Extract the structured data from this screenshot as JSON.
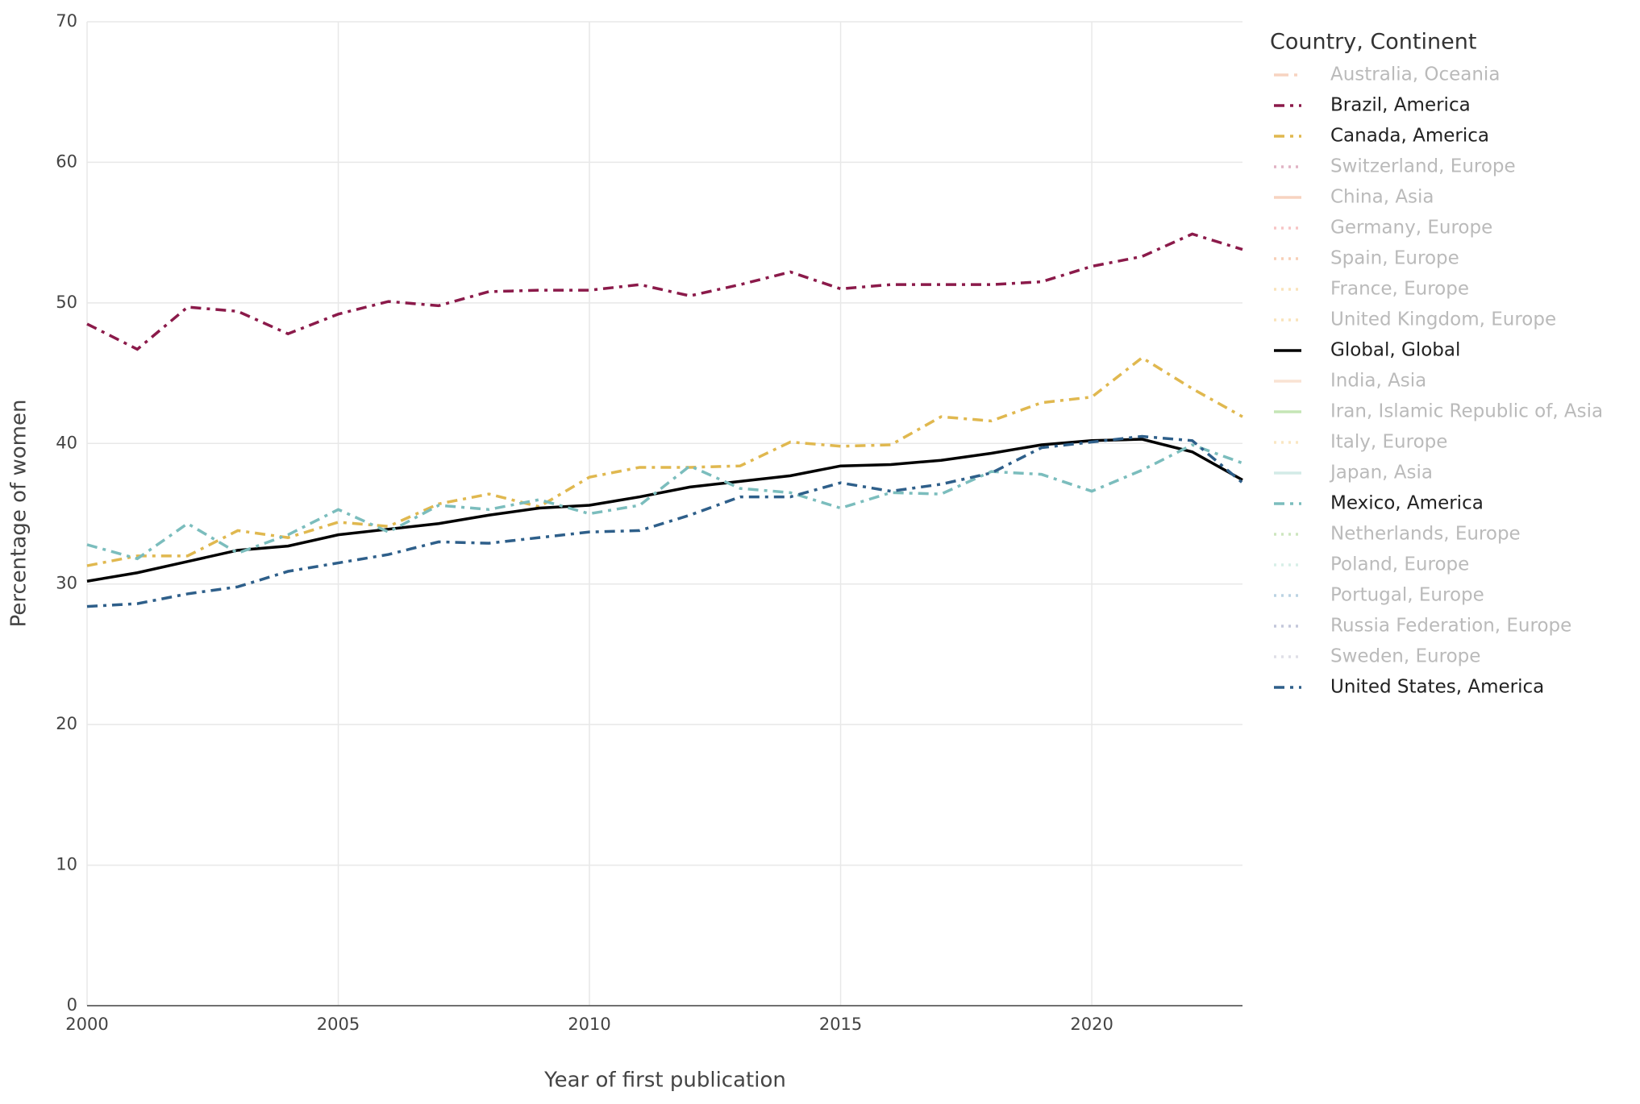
{
  "chart_data": {
    "type": "line",
    "x_label": "Year of first publication",
    "y_label": "Percentage of women",
    "legend_title": "Country, Continent",
    "legend_position": "right",
    "grid": true,
    "xlim": [
      2000,
      2023
    ],
    "ylim": [
      0,
      70
    ],
    "xticks": [
      2000,
      2005,
      2010,
      2015,
      2020
    ],
    "yticks": [
      0,
      10,
      20,
      30,
      40,
      50,
      60,
      70
    ],
    "x": [
      2000,
      2001,
      2002,
      2003,
      2004,
      2005,
      2006,
      2007,
      2008,
      2009,
      2010,
      2011,
      2012,
      2013,
      2014,
      2015,
      2016,
      2017,
      2018,
      2019,
      2020,
      2021,
      2022,
      2023
    ],
    "series": [
      {
        "name": "Australia, Oceania",
        "color": "#f0a882",
        "dash": "longdashdot",
        "visible": "legendonly"
      },
      {
        "name": "Brazil, America",
        "color": "#8b1a4a",
        "dash": "dashdot",
        "values": [
          48.5,
          46.7,
          49.7,
          49.4,
          47.8,
          49.2,
          50.1,
          49.8,
          50.8,
          50.9,
          50.9,
          51.3,
          50.5,
          51.3,
          52.2,
          51.0,
          51.3,
          51.3,
          51.3,
          51.5,
          52.6,
          53.3,
          54.9,
          53.8
        ]
      },
      {
        "name": "Canada, America",
        "color": "#e0b84f",
        "dash": "dashdot",
        "values": [
          31.3,
          32.0,
          32.0,
          33.8,
          33.3,
          34.4,
          34.1,
          35.7,
          36.4,
          35.5,
          37.6,
          38.3,
          38.3,
          38.4,
          40.1,
          39.8,
          39.9,
          41.9,
          41.6,
          42.9,
          43.3,
          46.1,
          43.9,
          41.9
        ]
      },
      {
        "name": "Switzerland, Europe",
        "color": "#c46a8a",
        "dash": "dot",
        "visible": "legendonly"
      },
      {
        "name": "China, Asia",
        "color": "#f0a882",
        "dash": "solid",
        "visible": "legendonly"
      },
      {
        "name": "Germany, Europe",
        "color": "#f08a8a",
        "dash": "dot",
        "visible": "legendonly"
      },
      {
        "name": "Spain, Europe",
        "color": "#f0a070",
        "dash": "dot",
        "visible": "legendonly"
      },
      {
        "name": "France, Europe",
        "color": "#f5c878",
        "dash": "dot",
        "visible": "legendonly"
      },
      {
        "name": "United Kingdom, Europe",
        "color": "#f5c878",
        "dash": "dot",
        "visible": "legendonly"
      },
      {
        "name": "Global, Global",
        "color": "#000000",
        "dash": "solid",
        "values": [
          30.2,
          30.8,
          31.6,
          32.4,
          32.7,
          33.5,
          33.9,
          34.3,
          34.9,
          35.4,
          35.6,
          36.2,
          36.9,
          37.3,
          37.7,
          38.4,
          38.5,
          38.8,
          39.3,
          39.9,
          40.2,
          40.3,
          39.4,
          37.4
        ]
      },
      {
        "name": "India, Asia",
        "color": "#f5c8a8",
        "dash": "solid",
        "visible": "legendonly"
      },
      {
        "name": "Iran, Islamic Republic of, Asia",
        "color": "#8ccf70",
        "dash": "solid",
        "visible": "legendonly"
      },
      {
        "name": "Italy, Europe",
        "color": "#f5d088",
        "dash": "dot",
        "visible": "legendonly"
      },
      {
        "name": "Japan, Asia",
        "color": "#a8d8d0",
        "dash": "solid",
        "visible": "legendonly"
      },
      {
        "name": "Mexico, America",
        "color": "#7bbdbd",
        "dash": "dashdot",
        "values": [
          32.8,
          31.8,
          34.3,
          32.2,
          33.5,
          35.3,
          33.7,
          35.6,
          35.3,
          36.0,
          35.0,
          35.6,
          38.4,
          36.8,
          36.5,
          35.4,
          36.5,
          36.4,
          38.0,
          37.8,
          36.6,
          38.1,
          39.9,
          38.6
        ]
      },
      {
        "name": "Netherlands, Europe",
        "color": "#9ccf80",
        "dash": "dot",
        "visible": "legendonly"
      },
      {
        "name": "Poland, Europe",
        "color": "#b0e0d0",
        "dash": "dot",
        "visible": "legendonly"
      },
      {
        "name": "Portugal, Europe",
        "color": "#7aa8c8",
        "dash": "dot",
        "visible": "legendonly"
      },
      {
        "name": "Russia Federation, Europe",
        "color": "#8890b8",
        "dash": "dot",
        "visible": "legendonly"
      },
      {
        "name": "Sweden, Europe",
        "color": "#c0c0d0",
        "dash": "dot",
        "visible": "legendonly"
      },
      {
        "name": "United States, America",
        "color": "#2e5f8a",
        "dash": "dashdot",
        "values": [
          28.4,
          28.6,
          29.3,
          29.8,
          30.9,
          31.5,
          32.1,
          33.0,
          32.9,
          33.3,
          33.7,
          33.8,
          34.9,
          36.2,
          36.2,
          37.2,
          36.6,
          37.1,
          37.9,
          39.7,
          40.1,
          40.5,
          40.2,
          37.2
        ]
      }
    ]
  }
}
